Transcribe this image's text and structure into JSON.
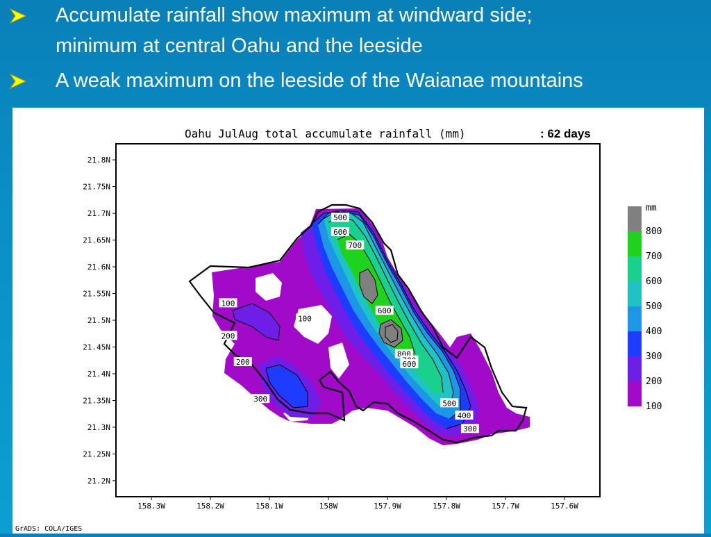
{
  "bullets": [
    {
      "lines": [
        "Accumulate rainfall show maximum at windward side;",
        "minimum at central Oahu and the leeside"
      ]
    },
    {
      "lines": [
        "A weak maximum on the leeside of the Waianae mountains"
      ]
    }
  ],
  "figure": {
    "title": "Oahu JulAug  total accumulate rainfall (mm)",
    "title_suffix": ":  62 days",
    "footer": "GrADS: COLA/IGES",
    "y_ticks": [
      "21.8N",
      "21.75N",
      "21.7N",
      "21.65N",
      "21.6N",
      "21.55N",
      "21.5N",
      "21.45N",
      "21.4N",
      "21.35N",
      "21.3N",
      "21.25N",
      "21.2N"
    ],
    "x_ticks": [
      "158.3W",
      "158.2W",
      "158.1W",
      "158W",
      "157.9W",
      "157.8W",
      "157.7W",
      "157.6W"
    ],
    "contour_labels": [
      {
        "text": "500",
        "lon": -157.98,
        "lat": 21.692
      },
      {
        "text": "600",
        "lon": -157.98,
        "lat": 21.665
      },
      {
        "text": "700",
        "lon": -157.955,
        "lat": 21.64
      },
      {
        "text": "100",
        "lon": -158.17,
        "lat": 21.532
      },
      {
        "text": "100",
        "lon": -158.04,
        "lat": 21.503
      },
      {
        "text": "600",
        "lon": -157.905,
        "lat": 21.518
      },
      {
        "text": "200",
        "lon": -158.17,
        "lat": 21.471
      },
      {
        "text": "800",
        "lon": -157.872,
        "lat": 21.437
      },
      {
        "text": "700",
        "lon": -157.863,
        "lat": 21.425
      },
      {
        "text": "600",
        "lon": -157.863,
        "lat": 21.418
      },
      {
        "text": "200",
        "lon": -158.145,
        "lat": 21.422
      },
      {
        "text": "300",
        "lon": -158.115,
        "lat": 21.353
      },
      {
        "text": "500",
        "lon": -157.795,
        "lat": 21.345
      },
      {
        "text": "400",
        "lon": -157.77,
        "lat": 21.322
      },
      {
        "text": "300",
        "lon": -157.76,
        "lat": 21.297
      }
    ],
    "legend": {
      "unit": "mm",
      "levels": [
        "800",
        "700",
        "600",
        "500",
        "400",
        "300",
        "200",
        "100"
      ],
      "colors": [
        "#808080",
        "#1ed21e",
        "#19d08c",
        "#1ec3c3",
        "#1e96e6",
        "#1e3cff",
        "#6e1ee6",
        "#a00ac8"
      ]
    }
  }
}
